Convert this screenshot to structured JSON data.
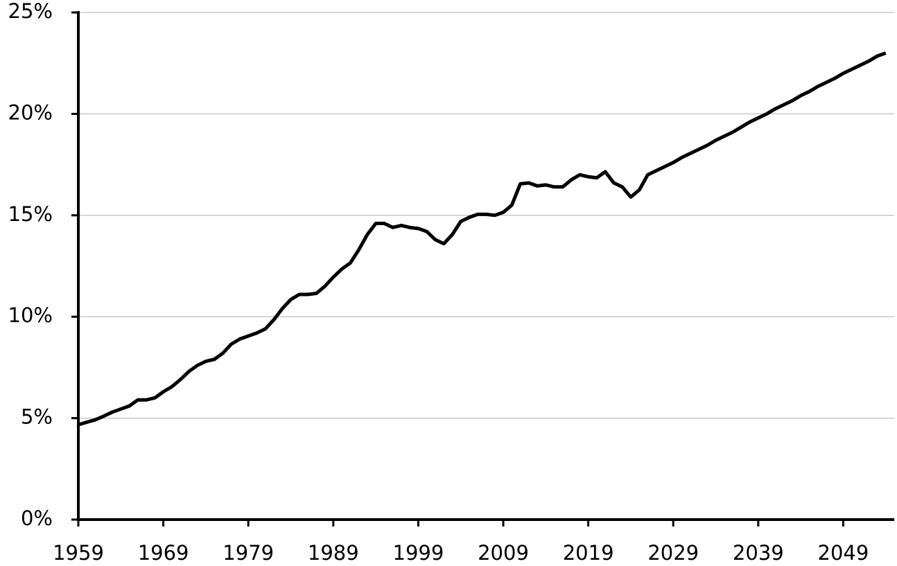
{
  "chart_data": {
    "type": "line",
    "x": [
      1959,
      1960,
      1961,
      1962,
      1963,
      1964,
      1965,
      1966,
      1967,
      1968,
      1969,
      1970,
      1971,
      1972,
      1973,
      1974,
      1975,
      1976,
      1977,
      1978,
      1979,
      1980,
      1981,
      1982,
      1983,
      1984,
      1985,
      1986,
      1987,
      1988,
      1989,
      1990,
      1991,
      1992,
      1993,
      1994,
      1995,
      1996,
      1997,
      1998,
      1999,
      2000,
      2001,
      2002,
      2003,
      2004,
      2005,
      2006,
      2007,
      2008,
      2009,
      2010,
      2011,
      2012,
      2013,
      2014,
      2015,
      2016,
      2017,
      2018,
      2019,
      2020,
      2021,
      2022,
      2023,
      2024,
      2025,
      2026,
      2027,
      2028,
      2029,
      2030,
      2031,
      2032,
      2033,
      2034,
      2035,
      2036,
      2037,
      2038,
      2039,
      2040,
      2041,
      2042,
      2043,
      2044,
      2045,
      2046,
      2047,
      2048,
      2049,
      2050,
      2051,
      2052,
      2053,
      2054
    ],
    "series": [
      {
        "color": "#000000",
        "values": [
          4.68,
          4.8,
          4.92,
          5.1,
          5.3,
          5.45,
          5.6,
          5.9,
          5.9,
          6.0,
          6.3,
          6.55,
          6.9,
          7.3,
          7.6,
          7.8,
          7.9,
          8.2,
          8.65,
          8.9,
          9.05,
          9.2,
          9.4,
          9.85,
          10.4,
          10.85,
          11.1,
          11.1,
          11.15,
          11.5,
          11.95,
          12.35,
          12.65,
          13.3,
          14.05,
          14.6,
          14.6,
          14.4,
          14.5,
          14.4,
          14.35,
          14.2,
          13.8,
          13.6,
          14.05,
          14.7,
          14.9,
          15.05,
          15.05,
          15.0,
          15.15,
          15.5,
          16.55,
          16.6,
          16.45,
          16.5,
          16.4,
          16.4,
          16.75,
          17.0,
          16.9,
          16.85,
          17.15,
          16.6,
          16.4,
          15.9,
          16.25,
          17.0,
          17.2,
          17.4,
          17.6,
          17.85,
          18.05,
          18.25,
          18.45,
          18.7,
          18.9,
          19.1,
          19.35,
          19.6,
          19.8,
          20.0,
          20.25,
          20.45,
          20.65,
          20.9,
          21.1,
          21.35,
          21.55,
          21.75,
          22.0,
          22.2,
          22.4,
          22.6,
          22.85,
          23.0
        ]
      }
    ],
    "xlim": [
      1959,
      2055
    ],
    "xticks": [
      1959,
      1969,
      1979,
      1989,
      1999,
      2009,
      2019,
      2029,
      2039,
      2049
    ],
    "ylim": [
      0,
      25
    ],
    "yticks": [
      {
        "value": 0,
        "label": "0%"
      },
      {
        "value": 5,
        "label": "5%"
      },
      {
        "value": 10,
        "label": "10%"
      },
      {
        "value": 15,
        "label": "15%"
      },
      {
        "value": 20,
        "label": "20%"
      },
      {
        "value": 25,
        "label": "25%"
      }
    ],
    "grid": true
  }
}
